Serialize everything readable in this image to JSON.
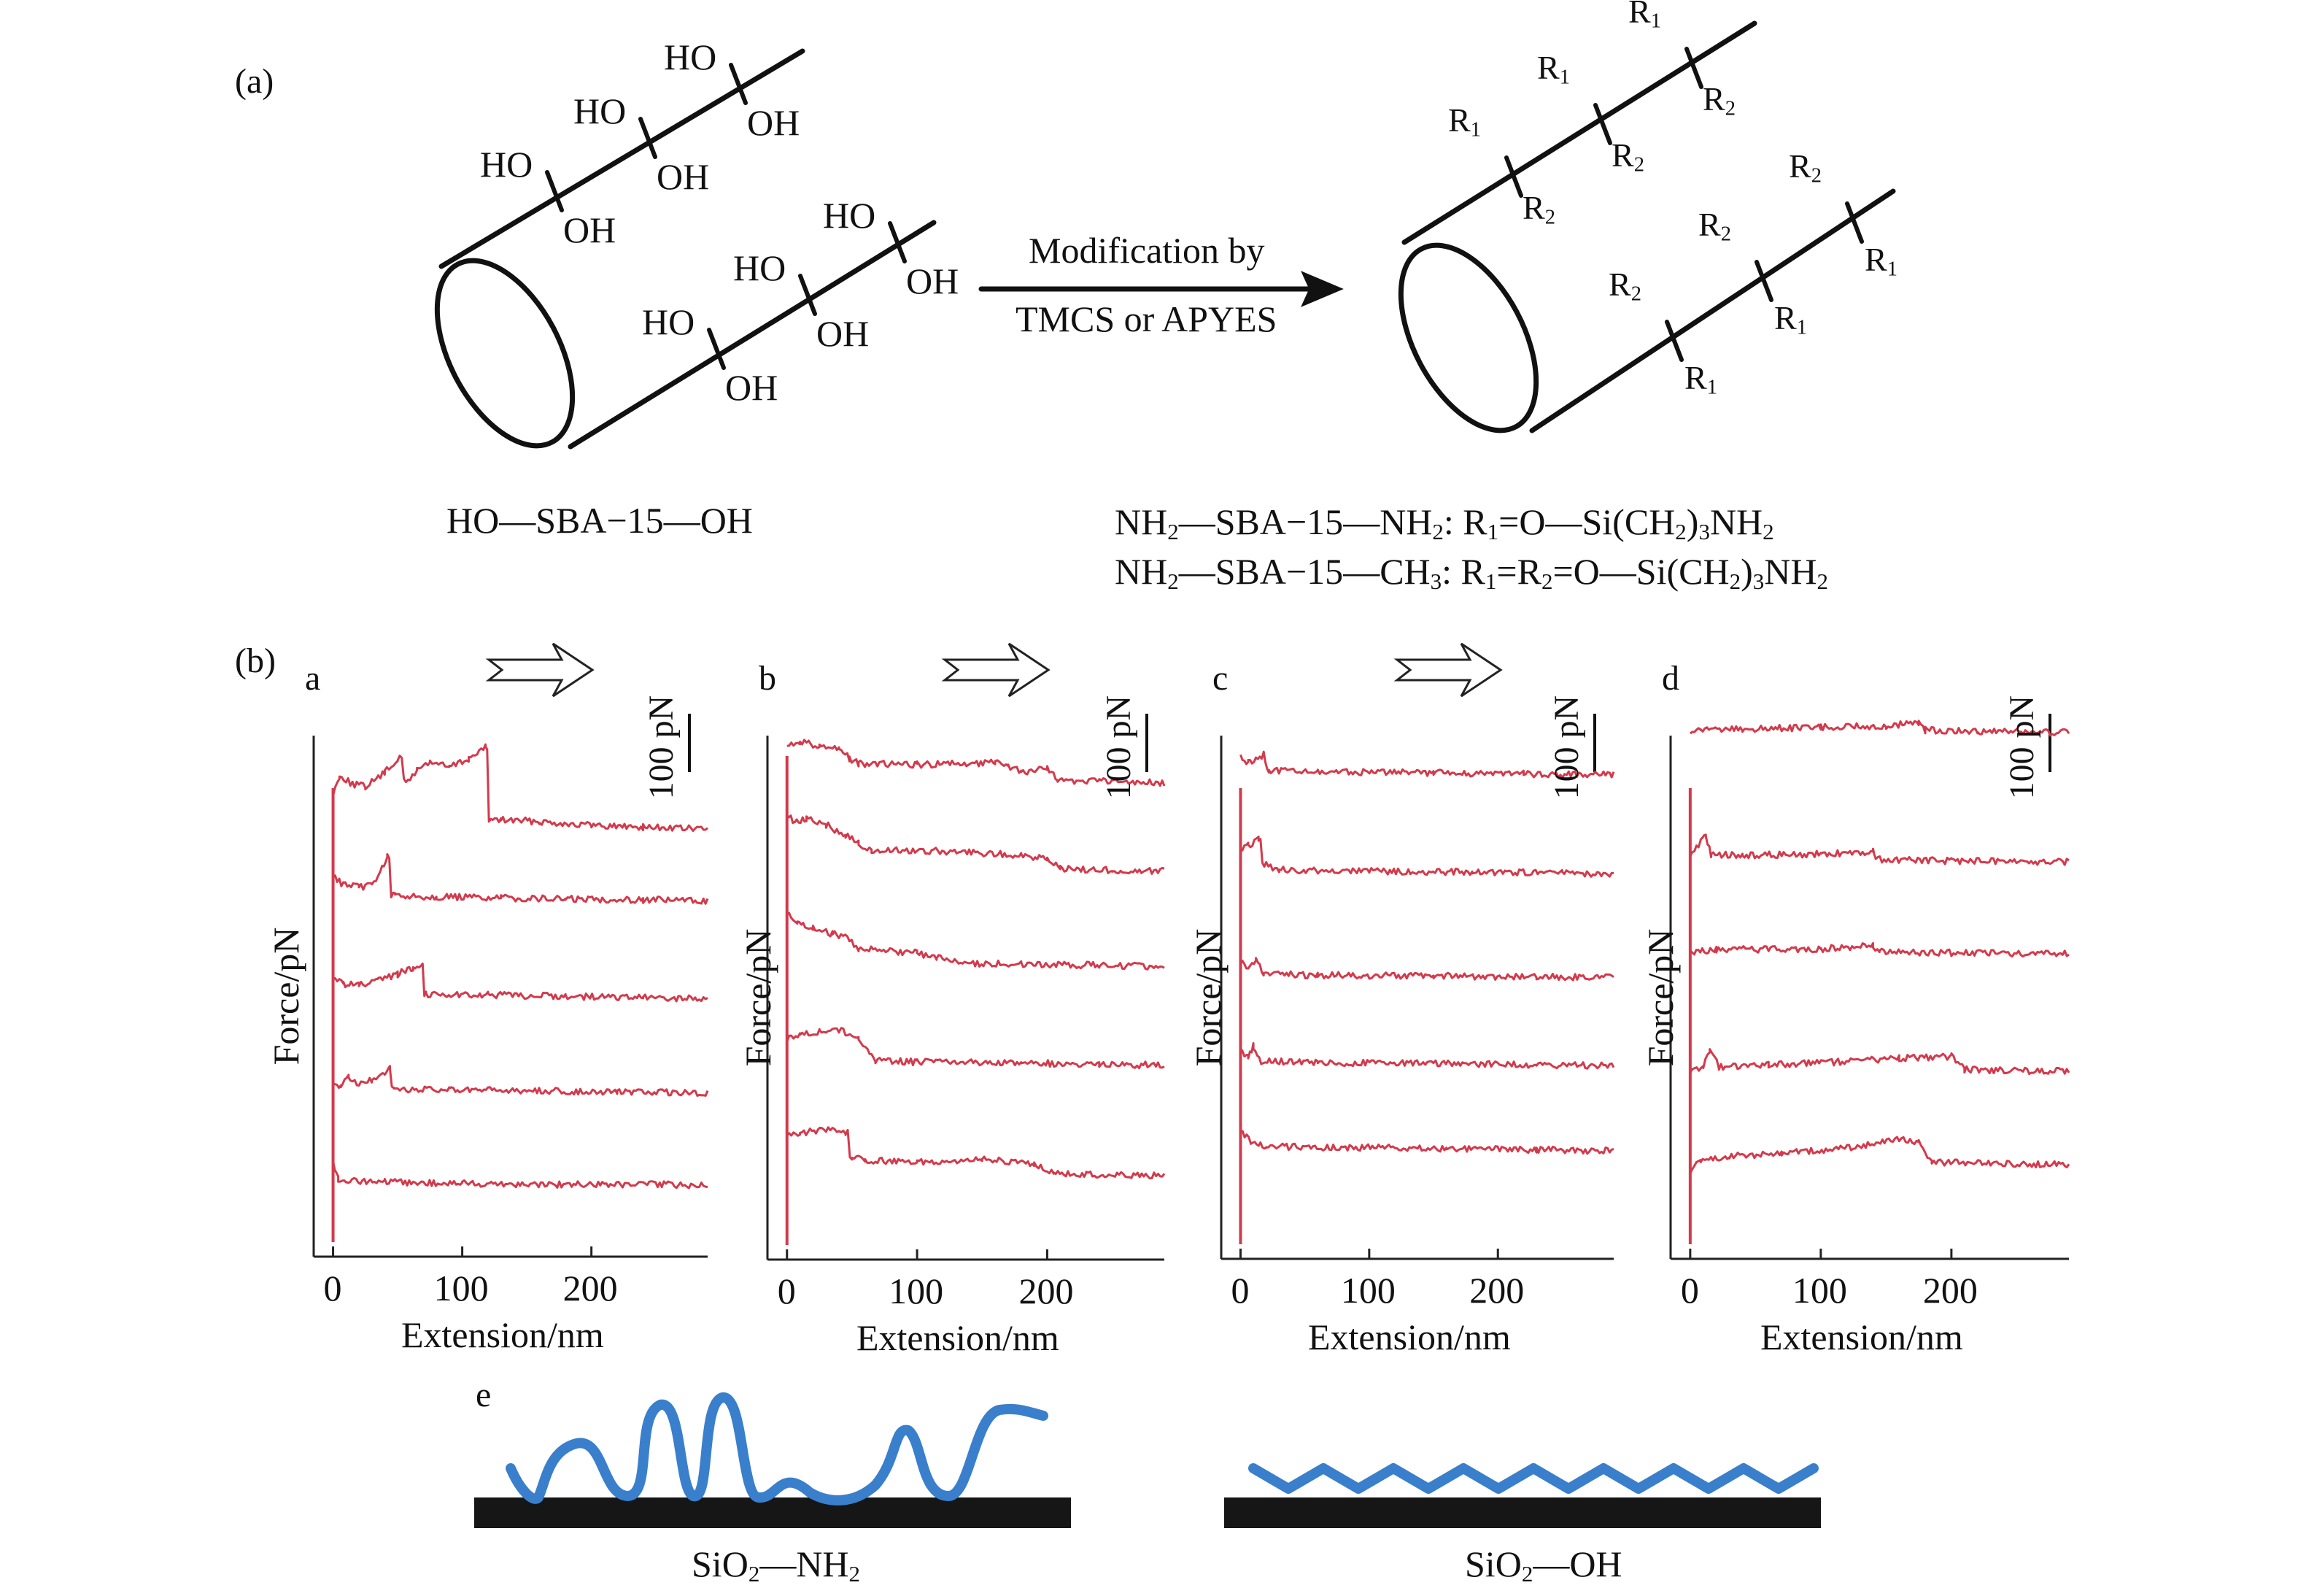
{
  "panel_a": {
    "tag": "(a)",
    "reaction_line1": "Modification by",
    "reaction_line2": "TMCS or APYES",
    "reactant": {
      "left": "HO",
      "middle": "SBA−15",
      "right": "OH"
    },
    "hydroxyl": {
      "ho": "HO",
      "oh": "OH"
    },
    "substituent": {
      "r": "R",
      "sub1": "1",
      "sub2": "2"
    },
    "product_lines": [
      {
        "lead": "NH",
        "lead_sub": "2",
        "mid": "SBA−15",
        "tail": "NH",
        "tail_sub": "2",
        "formula": ": R",
        "f_sub": "1",
        "f_rest": "=O—Si(CH",
        "f_sub2": "2",
        "f_end": ")",
        "f_sub3": "3",
        "f_final": "NH",
        "f_sub4": "2"
      },
      {
        "lead": "NH",
        "lead_sub": "2",
        "mid": "SBA−15",
        "tail": "CH",
        "tail_sub": "3",
        "formula": ": R",
        "f_sub": "1",
        "f_mid": "=R",
        "f_midsub": "2",
        "f_rest": "=O—Si(CH",
        "f_sub2": "2",
        "f_end": ")",
        "f_sub3": "3",
        "f_final": "NH",
        "f_sub4": "2"
      }
    ]
  },
  "panel_b": {
    "tag": "(b)",
    "scale_label": "100 pN",
    "ylabel": "Force/pN",
    "xlabel": "Extension/nm",
    "xticks": [
      "0",
      "100",
      "200"
    ],
    "sub_labels": [
      "a",
      "b",
      "c",
      "d"
    ]
  },
  "panel_e": {
    "tag": "e",
    "left_caption": {
      "base": "SiO",
      "sub": "2",
      "dash": "—NH",
      "sub2": "2"
    },
    "right_caption": {
      "base": "SiO",
      "sub": "2",
      "dash": "—OH"
    }
  },
  "colors": {
    "trace": "#d33a4c",
    "chain": "#3a7fcb",
    "substrate": "#161616",
    "line": "#111111"
  },
  "chart_data": [
    {
      "type": "line",
      "panel": "a",
      "xlabel": "Extension/nm",
      "ylabel": "Force/pN",
      "xlim": [
        -15,
        290
      ],
      "xticks": [
        0,
        100,
        200
      ],
      "series": [
        {
          "points": [
            [
              0,
              120
            ],
            [
              5,
              85
            ],
            [
              15,
              100
            ],
            [
              25,
              105
            ],
            [
              40,
              80
            ],
            [
              50,
              55
            ],
            [
              58,
              95
            ],
            [
              65,
              75
            ],
            [
              75,
              60
            ],
            [
              90,
              70
            ],
            [
              105,
              55
            ],
            [
              118,
              35
            ],
            [
              122,
              165
            ],
            [
              130,
              165
            ],
            [
              160,
              168
            ],
            [
              200,
              175
            ],
            [
              240,
              178
            ],
            [
              290,
              182
            ]
          ]
        },
        {
          "points": [
            [
              0,
              80
            ],
            [
              8,
              95
            ],
            [
              20,
              100
            ],
            [
              30,
              95
            ],
            [
              38,
              65
            ],
            [
              42,
              45
            ],
            [
              48,
              115
            ],
            [
              80,
              117
            ],
            [
              130,
              119
            ],
            [
              180,
              121
            ],
            [
              240,
              122
            ],
            [
              290,
              124
            ]
          ]
        },
        {
          "points": [
            [
              0,
              80
            ],
            [
              8,
              90
            ],
            [
              20,
              92
            ],
            [
              35,
              85
            ],
            [
              50,
              72
            ],
            [
              62,
              60
            ],
            [
              68,
              55
            ],
            [
              72,
              108
            ],
            [
              120,
              110
            ],
            [
              180,
              112
            ],
            [
              240,
              115
            ],
            [
              290,
              117
            ]
          ]
        },
        {
          "points": [
            [
              0,
              100
            ],
            [
              6,
              110
            ],
            [
              12,
              95
            ],
            [
              20,
              105
            ],
            [
              30,
              100
            ],
            [
              40,
              90
            ],
            [
              44,
              78
            ],
            [
              47,
              115
            ],
            [
              90,
              117
            ],
            [
              150,
              118
            ],
            [
              220,
              120
            ],
            [
              290,
              122
            ]
          ]
        },
        {
          "points": [
            [
              0,
              90
            ],
            [
              4,
              120
            ],
            [
              10,
              122
            ],
            [
              40,
              125
            ],
            [
              100,
              127
            ],
            [
              180,
              129
            ],
            [
              240,
              129
            ],
            [
              290,
              130
            ]
          ]
        }
      ]
    },
    {
      "type": "line",
      "panel": "b",
      "xlabel": "Extension/nm",
      "ylabel": "Force/pN",
      "xlim": [
        -15,
        290
      ],
      "xticks": [
        0,
        100,
        200
      ],
      "series": [
        {
          "points": [
            [
              0,
              55
            ],
            [
              10,
              50
            ],
            [
              25,
              58
            ],
            [
              40,
              62
            ],
            [
              48,
              80
            ],
            [
              55,
              90
            ],
            [
              100,
              92
            ],
            [
              160,
              88
            ],
            [
              170,
              95
            ],
            [
              180,
              105
            ],
            [
              200,
              98
            ],
            [
              208,
              120
            ],
            [
              240,
              122
            ],
            [
              290,
              125
            ]
          ]
        },
        {
          "points": [
            [
              0,
              30
            ],
            [
              6,
              45
            ],
            [
              15,
              40
            ],
            [
              30,
              50
            ],
            [
              45,
              70
            ],
            [
              55,
              82
            ],
            [
              65,
              98
            ],
            [
              100,
              96
            ],
            [
              180,
              105
            ],
            [
              200,
              112
            ],
            [
              210,
              130
            ],
            [
              250,
              132
            ],
            [
              290,
              134
            ]
          ]
        },
        {
          "points": [
            [
              0,
              25
            ],
            [
              8,
              45
            ],
            [
              20,
              55
            ],
            [
              35,
              65
            ],
            [
              48,
              75
            ],
            [
              55,
              92
            ],
            [
              100,
              100
            ],
            [
              115,
              108
            ],
            [
              135,
              118
            ],
            [
              180,
              120
            ],
            [
              240,
              122
            ],
            [
              290,
              124
            ]
          ]
        },
        {
          "points": [
            [
              0,
              70
            ],
            [
              10,
              62
            ],
            [
              25,
              58
            ],
            [
              40,
              55
            ],
            [
              55,
              68
            ],
            [
              62,
              90
            ],
            [
              68,
              110
            ],
            [
              100,
              112
            ],
            [
              180,
              114
            ],
            [
              240,
              116
            ],
            [
              290,
              118
            ]
          ]
        },
        {
          "points": [
            [
              0,
              50
            ],
            [
              10,
              42
            ],
            [
              30,
              38
            ],
            [
              45,
              42
            ],
            [
              50,
              88
            ],
            [
              60,
              92
            ],
            [
              100,
              95
            ],
            [
              150,
              90
            ],
            [
              190,
              100
            ],
            [
              205,
              115
            ],
            [
              230,
              118
            ],
            [
              290,
              120
            ]
          ]
        }
      ]
    },
    {
      "type": "line",
      "panel": "c",
      "xlabel": "Extension/nm",
      "ylabel": "Force/pN",
      "xlim": [
        -15,
        290
      ],
      "xticks": [
        0,
        100,
        200
      ],
      "series": [
        {
          "points": [
            [
              0,
              60
            ],
            [
              6,
              70
            ],
            [
              12,
              65
            ],
            [
              18,
              55
            ],
            [
              22,
              85
            ],
            [
              60,
              86
            ],
            [
              150,
              88
            ],
            [
              220,
              90
            ],
            [
              290,
              92
            ]
          ]
        },
        {
          "points": [
            [
              0,
              45
            ],
            [
              6,
              40
            ],
            [
              14,
              28
            ],
            [
              20,
              75
            ],
            [
              30,
              84
            ],
            [
              100,
              86
            ],
            [
              180,
              88
            ],
            [
              250,
              90
            ],
            [
              290,
              92
            ]
          ]
        },
        {
          "points": [
            [
              0,
              65
            ],
            [
              6,
              78
            ],
            [
              12,
              60
            ],
            [
              18,
              88
            ],
            [
              60,
              90
            ],
            [
              150,
              91
            ],
            [
              230,
              93
            ],
            [
              290,
              94
            ]
          ]
        },
        {
          "points": [
            [
              0,
              70
            ],
            [
              6,
              82
            ],
            [
              10,
              62
            ],
            [
              16,
              90
            ],
            [
              60,
              92
            ],
            [
              150,
              94
            ],
            [
              230,
              96
            ],
            [
              290,
              98
            ]
          ]
        },
        {
          "points": [
            [
              0,
              50
            ],
            [
              8,
              70
            ],
            [
              20,
              80
            ],
            [
              80,
              82
            ],
            [
              160,
              84
            ],
            [
              230,
              86
            ],
            [
              290,
              88
            ]
          ]
        }
      ]
    },
    {
      "type": "line",
      "panel": "d",
      "xlabel": "Extension/nm",
      "ylabel": "Force/pN",
      "xlim": [
        -15,
        290
      ],
      "xticks": [
        0,
        100,
        200
      ],
      "series": [
        {
          "points": [
            [
              0,
              70
            ],
            [
              8,
              60
            ],
            [
              40,
              58
            ],
            [
              100,
              55
            ],
            [
              150,
              52
            ],
            [
              175,
              46
            ],
            [
              180,
              60
            ],
            [
              220,
              62
            ],
            [
              290,
              64
            ]
          ]
        },
        {
          "points": [
            [
              0,
              95
            ],
            [
              8,
              68
            ],
            [
              12,
              55
            ],
            [
              16,
              90
            ],
            [
              40,
              92
            ],
            [
              100,
              90
            ],
            [
              140,
              86
            ],
            [
              142,
              100
            ],
            [
              200,
              102
            ],
            [
              290,
              104
            ]
          ]
        },
        {
          "points": [
            [
              0,
              95
            ],
            [
              20,
              92
            ],
            [
              60,
              90
            ],
            [
              100,
              90
            ],
            [
              140,
              84
            ],
            [
              145,
              95
            ],
            [
              200,
              97
            ],
            [
              290,
              99
            ]
          ]
        },
        {
          "points": [
            [
              0,
              120
            ],
            [
              10,
              112
            ],
            [
              15,
              80
            ],
            [
              22,
              110
            ],
            [
              60,
              106
            ],
            [
              110,
              102
            ],
            [
              160,
              95
            ],
            [
              200,
              92
            ],
            [
              210,
              115
            ],
            [
              250,
              117
            ],
            [
              290,
              118
            ]
          ]
        },
        {
          "points": [
            [
              0,
              110
            ],
            [
              8,
              92
            ],
            [
              30,
              85
            ],
            [
              70,
              80
            ],
            [
              120,
              70
            ],
            [
              160,
              55
            ],
            [
              175,
              58
            ],
            [
              185,
              95
            ],
            [
              230,
              98
            ],
            [
              290,
              100
            ]
          ]
        }
      ]
    }
  ]
}
